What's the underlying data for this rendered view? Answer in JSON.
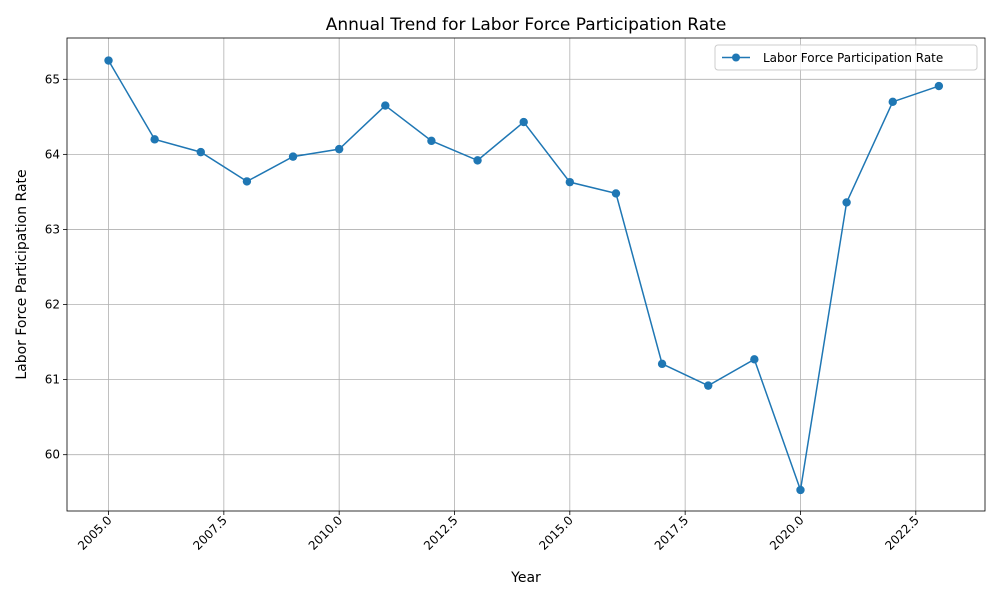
{
  "chart_data": {
    "type": "line",
    "title": "Annual Trend for Labor Force Participation Rate",
    "xlabel": "Year",
    "ylabel": "Labor Force Participation Rate",
    "x": [
      2005,
      2006,
      2007,
      2008,
      2009,
      2010,
      2011,
      2012,
      2013,
      2014,
      2015,
      2016,
      2017,
      2018,
      2019,
      2020,
      2021,
      2022,
      2023
    ],
    "series": [
      {
        "name": "Labor Force Participation Rate",
        "color": "#1f77b4",
        "marker": "circle",
        "values": [
          65.25,
          64.2,
          64.03,
          63.64,
          63.97,
          64.07,
          64.65,
          64.18,
          63.92,
          64.43,
          63.63,
          63.48,
          61.21,
          60.92,
          61.27,
          59.53,
          63.36,
          64.7,
          64.91
        ]
      }
    ],
    "xlim": [
      2004.1,
      2024.0
    ],
    "ylim": [
      59.25,
      65.55
    ],
    "xticks": [
      2005.0,
      2007.5,
      2010.0,
      2012.5,
      2015.0,
      2017.5,
      2020.0,
      2022.5
    ],
    "xtick_labels": [
      "2005.0",
      "2007.5",
      "2010.0",
      "2012.5",
      "2015.0",
      "2017.5",
      "2020.0",
      "2022.5"
    ],
    "yticks": [
      60,
      61,
      62,
      63,
      64,
      65
    ],
    "ytick_labels": [
      "60",
      "61",
      "62",
      "63",
      "64",
      "65"
    ],
    "xtick_rotation": "45 degrees",
    "grid": true,
    "legend": "top-right"
  }
}
